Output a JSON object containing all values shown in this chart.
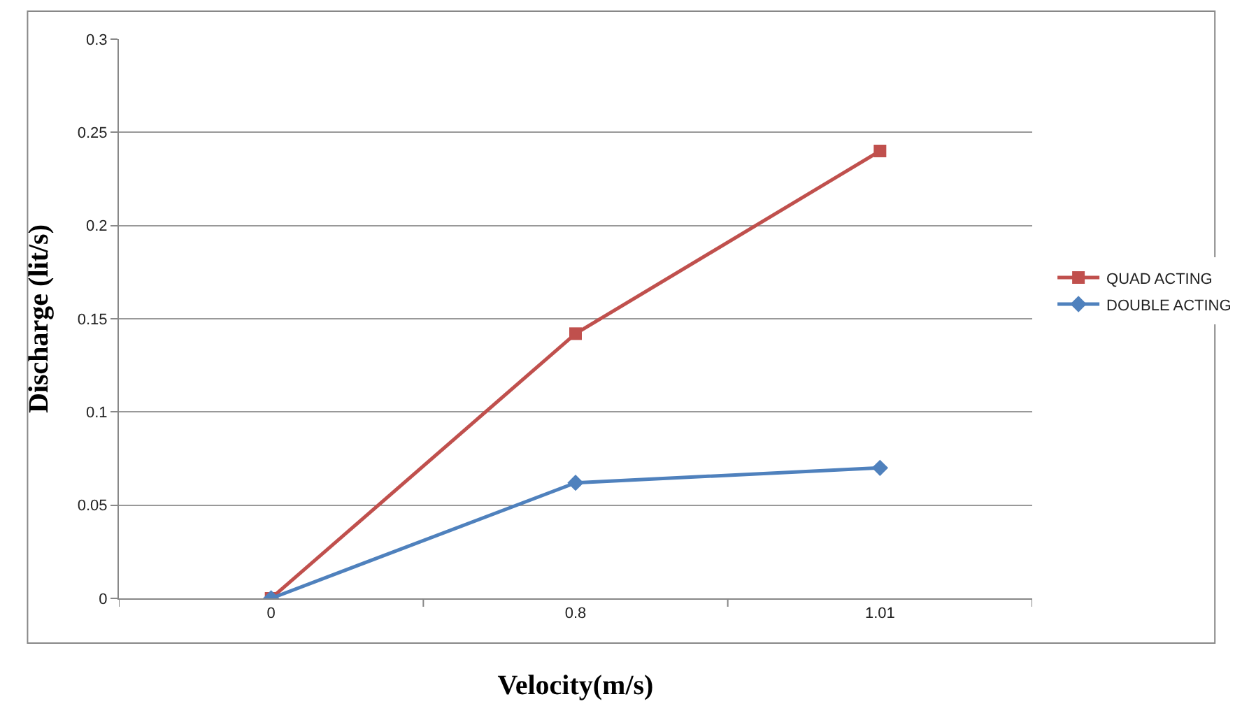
{
  "chart_data": {
    "type": "line",
    "xlabel": "Velocity(m/s)",
    "ylabel": "Discharge (lit/s)",
    "categories": [
      "0",
      "0.8",
      "1.01"
    ],
    "series": [
      {
        "name": "QUAD ACTING",
        "color": "#c0504d",
        "marker": "square",
        "values": [
          0,
          0.142,
          0.24
        ]
      },
      {
        "name": "DOUBLE ACTING",
        "color": "#4f81bd",
        "marker": "diamond",
        "values": [
          0,
          0.062,
          0.07
        ]
      }
    ],
    "ylim": [
      0,
      0.3
    ],
    "yticks": [
      0,
      0.05,
      0.1,
      0.15,
      0.2,
      0.25,
      0.3
    ],
    "grid": "y",
    "legend": "right",
    "line_style": "solid"
  }
}
